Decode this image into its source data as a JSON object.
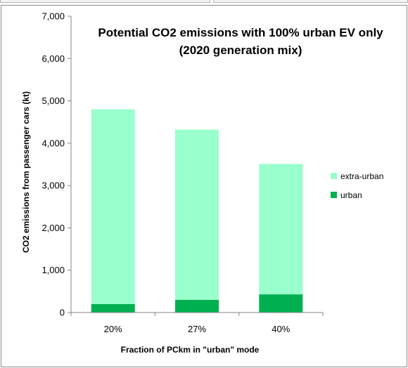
{
  "chart_data": {
    "type": "bar",
    "stacked": true,
    "title": [
      "Potential CO2 emissions with 100% urban EV only",
      "(2020 generation mix)"
    ],
    "xlabel": "Fraction of PCkm in \"urban\" mode",
    "ylabel": "CO2 emissions from passenger cars (kt)",
    "categories": [
      "20%",
      "27%",
      "40%"
    ],
    "ylim": [
      0,
      7000
    ],
    "yticks": [
      0,
      1000,
      2000,
      3000,
      4000,
      5000,
      6000,
      7000
    ],
    "ytick_labels": [
      "0",
      "1,000",
      "2,000",
      "3,000",
      "4,000",
      "5,000",
      "6,000",
      "7,000"
    ],
    "grid": false,
    "legend_position": "right",
    "series": [
      {
        "name": "urban",
        "color": "#00b050",
        "values": [
          200,
          300,
          430
        ]
      },
      {
        "name": "extra-urban",
        "color": "#99ffcc",
        "values": [
          4600,
          4020,
          3080
        ]
      }
    ],
    "legend_order": [
      "extra-urban",
      "urban"
    ]
  }
}
